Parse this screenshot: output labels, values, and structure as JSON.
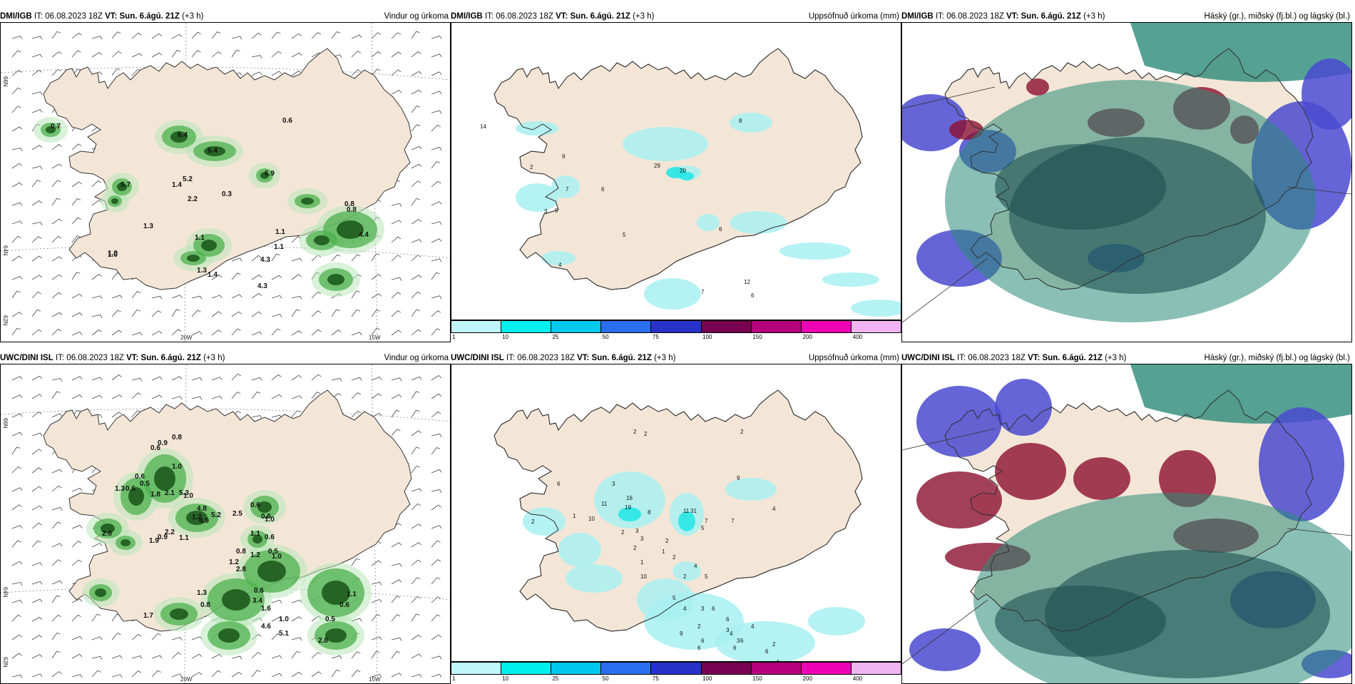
{
  "rows": [
    {
      "model": "DMI/IGB",
      "wind_panel": {
        "model": "DMI/IGB",
        "it_label": "IT:",
        "it": "06.08.2023 18Z",
        "vt_label": "VT:",
        "vt": "Sun. 6.ágú. 21Z",
        "lead": "(+3 h)",
        "title": "Vindur og úrkoma",
        "labels": [
          "0.7",
          "6.4",
          "5.4",
          "6.9",
          "5.2",
          "0.6",
          "5.7",
          "1.4",
          "2.2",
          "0.3",
          "1.3",
          "1.0",
          "1.1",
          "1.1",
          "0.8",
          "4.4",
          "4.3",
          "0.8",
          "4.3",
          "1.4",
          "1.3",
          "1.1",
          "1.0"
        ]
      },
      "accum_panel": {
        "model": "DMI/IGB",
        "it_label": "IT:",
        "it": "06.08.2023 18Z",
        "vt_label": "VT:",
        "vt": "Sun. 6.ágú. 21Z",
        "lead": "(+3 h)",
        "title": "Uppsöfnuð úrkoma (mm)",
        "labels": [
          "14",
          "8",
          "9",
          "29",
          "20",
          "2",
          "7",
          "6",
          "5",
          "3",
          "4",
          "5",
          "6",
          "12",
          "6",
          "7"
        ]
      },
      "cloud_panel": {
        "model": "DMI/IGB",
        "it_label": "IT:",
        "it": "06.08.2023 18Z",
        "vt_label": "VT:",
        "vt": "Sun. 6.ágú. 21Z",
        "lead": "(+3 h)",
        "title": "Háský (gr.), miðský (fj.bl.) og lágský (bl.)"
      }
    },
    {
      "model": "UWC/DINI ISL",
      "wind_panel": {
        "model": "UWC/DINI ISL",
        "it_label": "IT:",
        "it": "06.08.2023 18Z",
        "vt_label": "VT:",
        "vt": "Sun. 6.ágú. 21Z",
        "lead": "(+3 h)",
        "title": "Vindur og úrkoma",
        "labels": [
          "0.9",
          "0.8",
          "0.6",
          "1.0",
          "0.6",
          "1.3",
          "0.6",
          "1.8",
          "2.1",
          "5.3",
          "0.5",
          "1.0",
          "4.8",
          "2.5",
          "4.9",
          "1.2",
          "5.2",
          "2.8",
          "2.2",
          "1.9",
          "0.9",
          "1.1",
          "0.6",
          "0.6",
          "1.0",
          "1.1",
          "0.6",
          "0.8",
          "1.2",
          "1.2",
          "0.5",
          "1.0",
          "2.8",
          "0.6",
          "1.3",
          "3.4",
          "1.6",
          "1.0",
          "4.6",
          "5.1",
          "0.5",
          "2.8",
          "1.1",
          "0.6",
          "1.7",
          "0.8"
        ]
      },
      "accum_panel": {
        "model": "UWC/DINI ISL",
        "it_label": "IT:",
        "it": "06.08.2023 18Z",
        "vt_label": "VT:",
        "vt": "Sun. 6.ágú. 21Z",
        "lead": "(+3 h)",
        "title": "Uppsöfnuð úrkoma (mm)",
        "labels": [
          "2",
          "2",
          "2",
          "6",
          "2",
          "9",
          "4",
          "3",
          "11",
          "19",
          "16",
          "8",
          "11",
          "31",
          "7",
          "7",
          "10",
          "1",
          "2",
          "3",
          "2",
          "5",
          "3",
          "2",
          "1",
          "1",
          "2",
          "4",
          "5",
          "2",
          "10",
          "5",
          "4",
          "3",
          "6",
          "2",
          "9",
          "6",
          "6",
          "3",
          "4",
          "3",
          "4",
          "6",
          "6",
          "6",
          "6",
          "2",
          "4"
        ]
      },
      "cloud_panel": {
        "model": "UWC/DINI ISL",
        "it_label": "IT:",
        "it": "06.08.2023 18Z",
        "vt_label": "VT:",
        "vt": "Sun. 6.ágú. 21Z",
        "lead": "(+3 h)",
        "title": "Háský (gr.), miðský (fj.bl.) og lágský (bl.)"
      }
    }
  ],
  "axis_labels": {
    "lat_top": "66N",
    "lat_mid": "64N",
    "lat_bottom": "62N",
    "lon_w20": "20W",
    "lon_w15": "15W"
  },
  "colorbar": {
    "ticks": [
      "1",
      "10",
      "25",
      "50",
      "75",
      "100",
      "150",
      "200",
      "400"
    ],
    "colors": [
      "#bff7fa",
      "#00f0f0",
      "#00c8ec",
      "#2a6ff0",
      "#2832c8",
      "#780050",
      "#b4007a",
      "#f000b4",
      "#f0b4f0"
    ]
  },
  "map_colors": {
    "land": "#f4e6d7",
    "light_rain": "#a8f0f2",
    "medium_rain": "#28e6e6",
    "green_light": "#b8e6b8",
    "green_mid": "#4cb04c",
    "green_dark": "#1e5a1e",
    "cloud_high": "#2a8a78",
    "cloud_mid": "#1c5050",
    "cloud_blue": "#4a4ad0",
    "cloud_red": "#8c1030",
    "coast": "#333333"
  }
}
